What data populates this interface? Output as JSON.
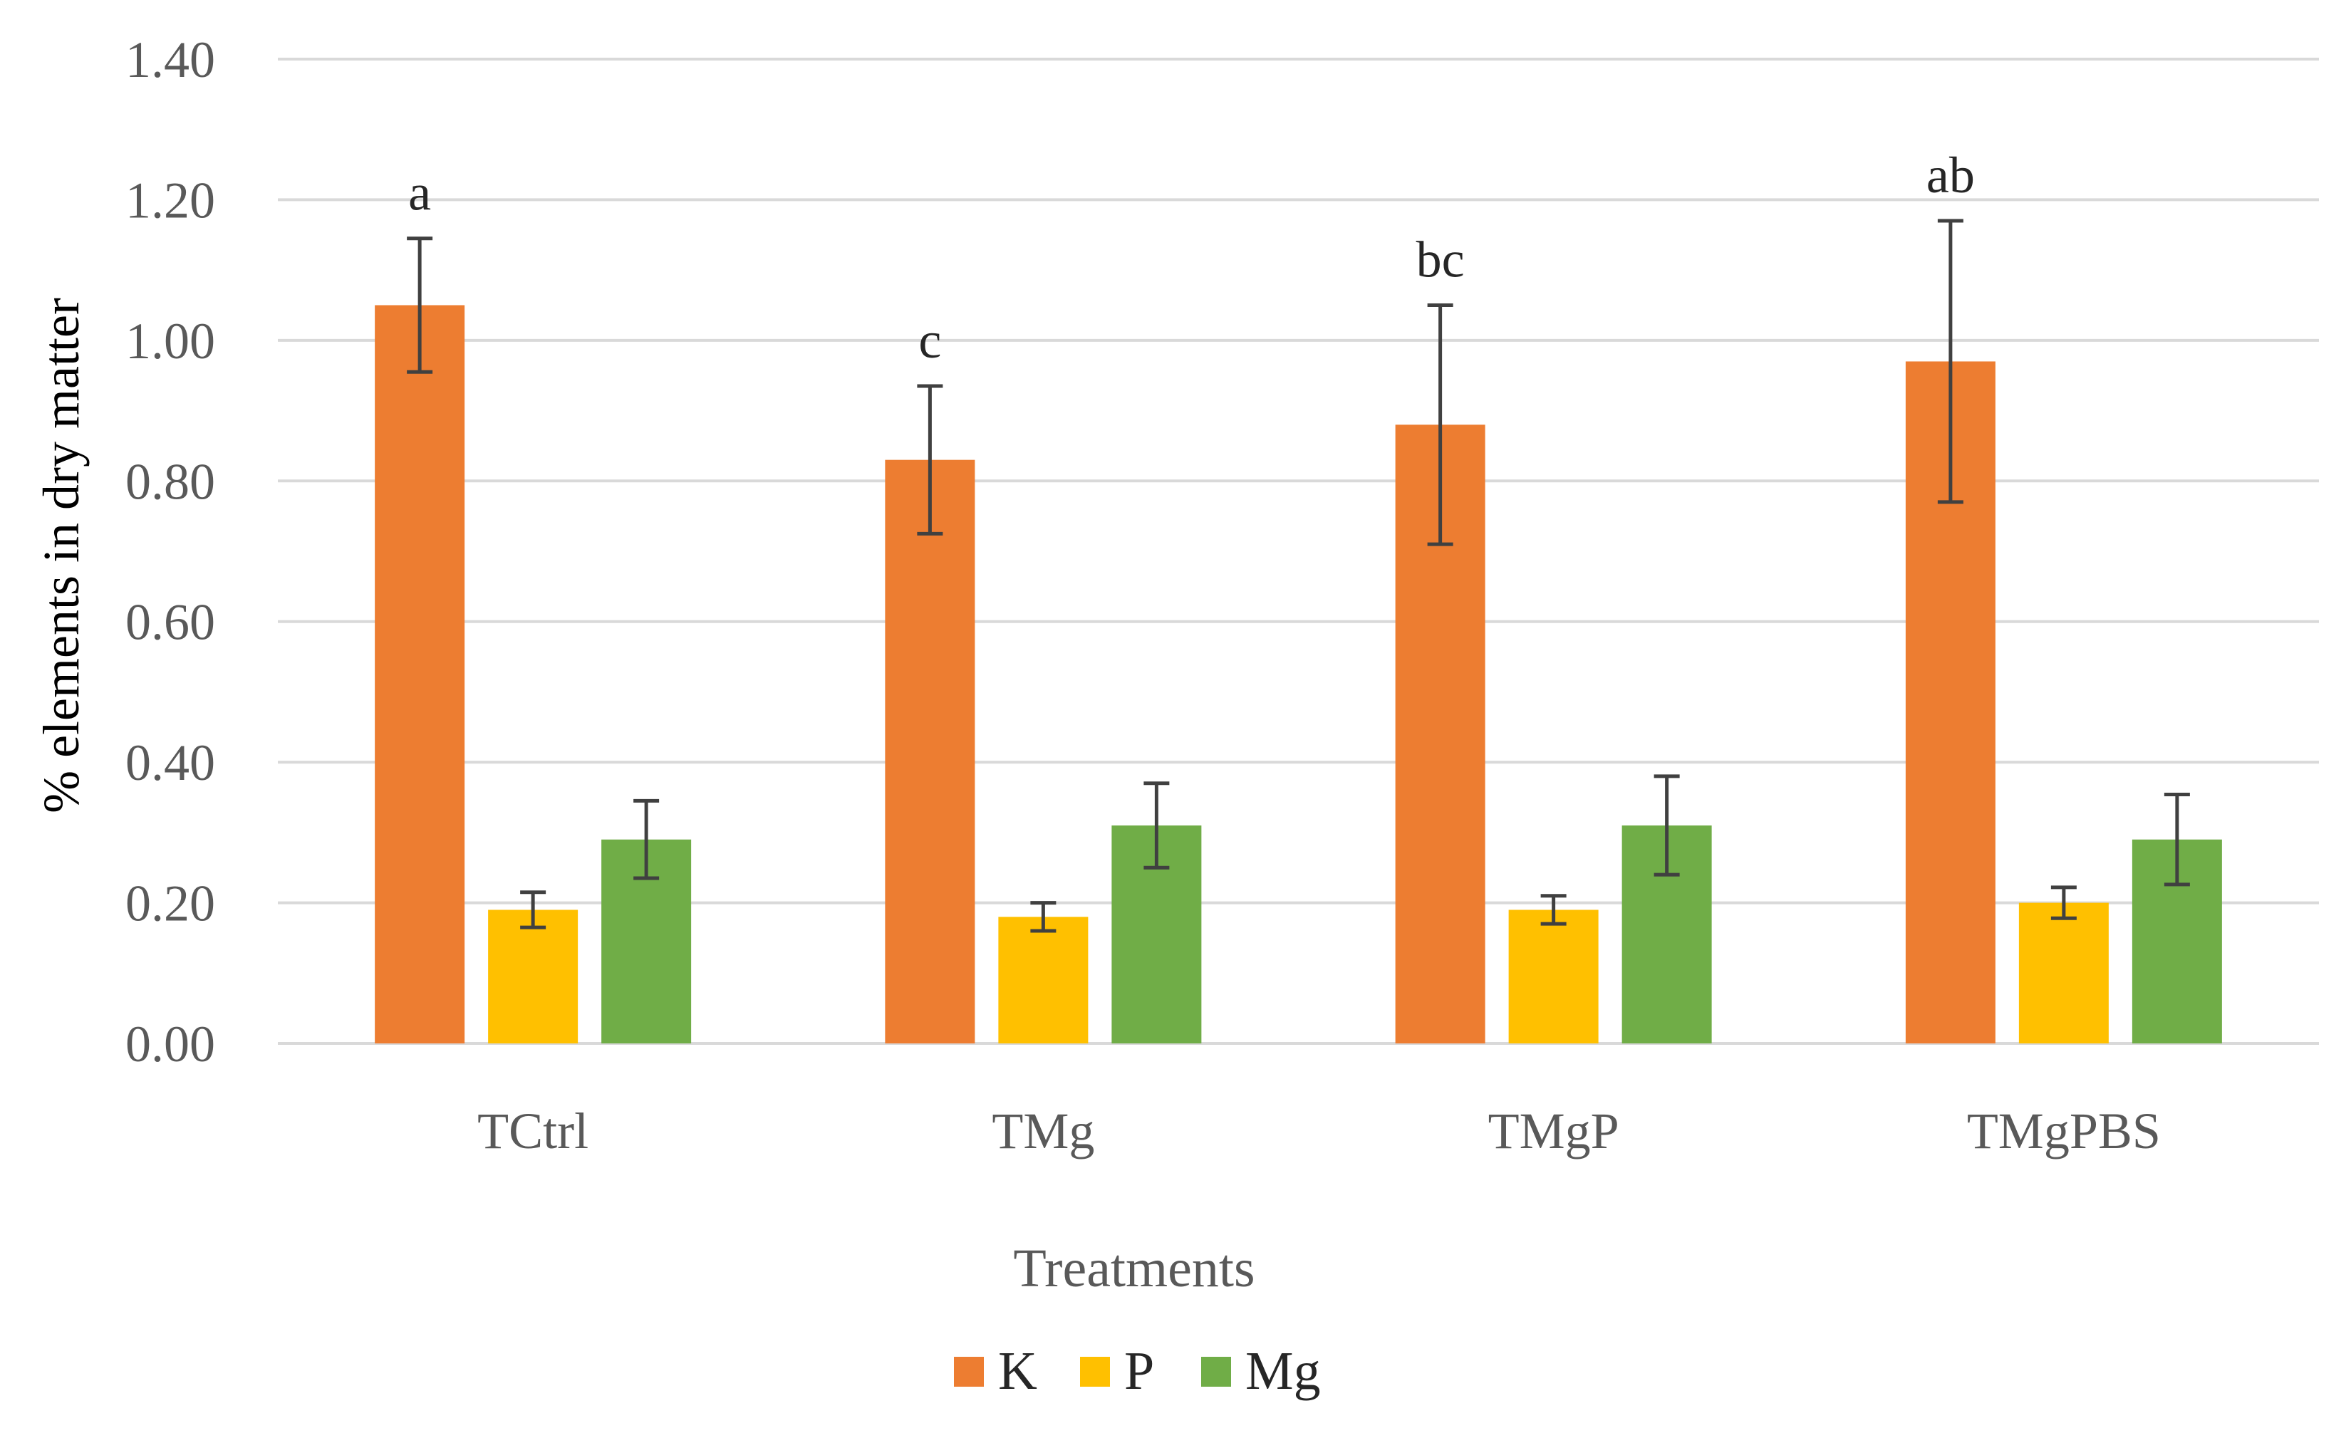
{
  "chart_data": {
    "type": "bar",
    "title": "",
    "xlabel": "Treatments",
    "ylabel": "% elements in dry matter",
    "ylim": [
      0,
      1.4
    ],
    "ytick_step": 0.2,
    "ytick_labels": [
      "0.00",
      "0.20",
      "0.40",
      "0.60",
      "0.80",
      "1.00",
      "1.20",
      "1.40"
    ],
    "grid": true,
    "legend_position": "bottom",
    "categories": [
      "TCtrl",
      "TMg",
      "TMgP",
      "TMgPBS"
    ],
    "series": [
      {
        "name": "K",
        "color": "#ED7D31",
        "values": [
          1.05,
          0.83,
          0.88,
          0.97
        ],
        "error": [
          0.095,
          0.105,
          0.17,
          0.2
        ]
      },
      {
        "name": "P",
        "color": "#FFC000",
        "values": [
          0.19,
          0.18,
          0.19,
          0.2
        ],
        "error": [
          0.025,
          0.02,
          0.02,
          0.022
        ]
      },
      {
        "name": "Mg",
        "color": "#70AD47",
        "values": [
          0.29,
          0.31,
          0.31,
          0.29
        ],
        "error": [
          0.055,
          0.06,
          0.07,
          0.064
        ]
      }
    ],
    "annotations": [
      {
        "category": "TCtrl",
        "series": "K",
        "text": "a"
      },
      {
        "category": "TMg",
        "series": "K",
        "text": "c"
      },
      {
        "category": "TMgP",
        "series": "K",
        "text": "bc"
      },
      {
        "category": "TMgPBS",
        "series": "K",
        "text": "ab"
      }
    ]
  }
}
